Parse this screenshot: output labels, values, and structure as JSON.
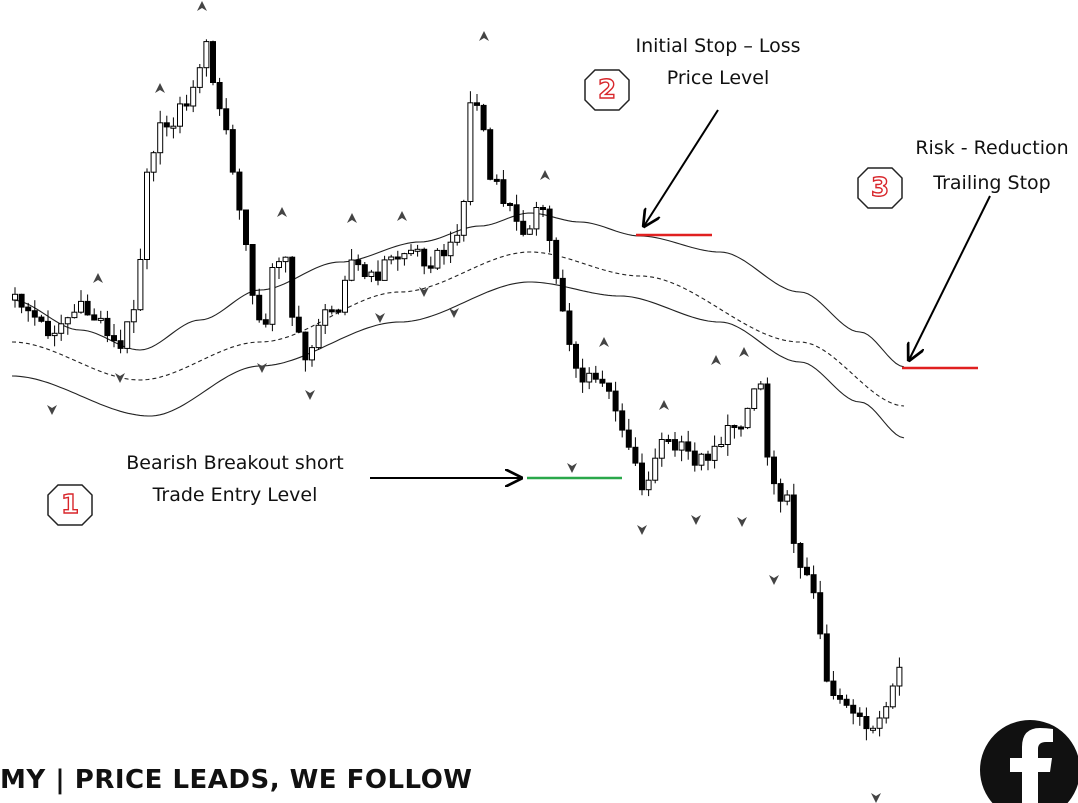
{
  "annotations": [
    {
      "number": "1",
      "lines": [
        "Bearish Breakout short",
        "Trade Entry Level"
      ]
    },
    {
      "number": "2",
      "lines": [
        "Initial Stop – Loss",
        "Price Level"
      ]
    },
    {
      "number": "3",
      "lines": [
        "Risk - Reduction",
        "Trailing Stop"
      ]
    }
  ],
  "footer": "MY | PRICE LEADS, WE FOLLOW"
}
